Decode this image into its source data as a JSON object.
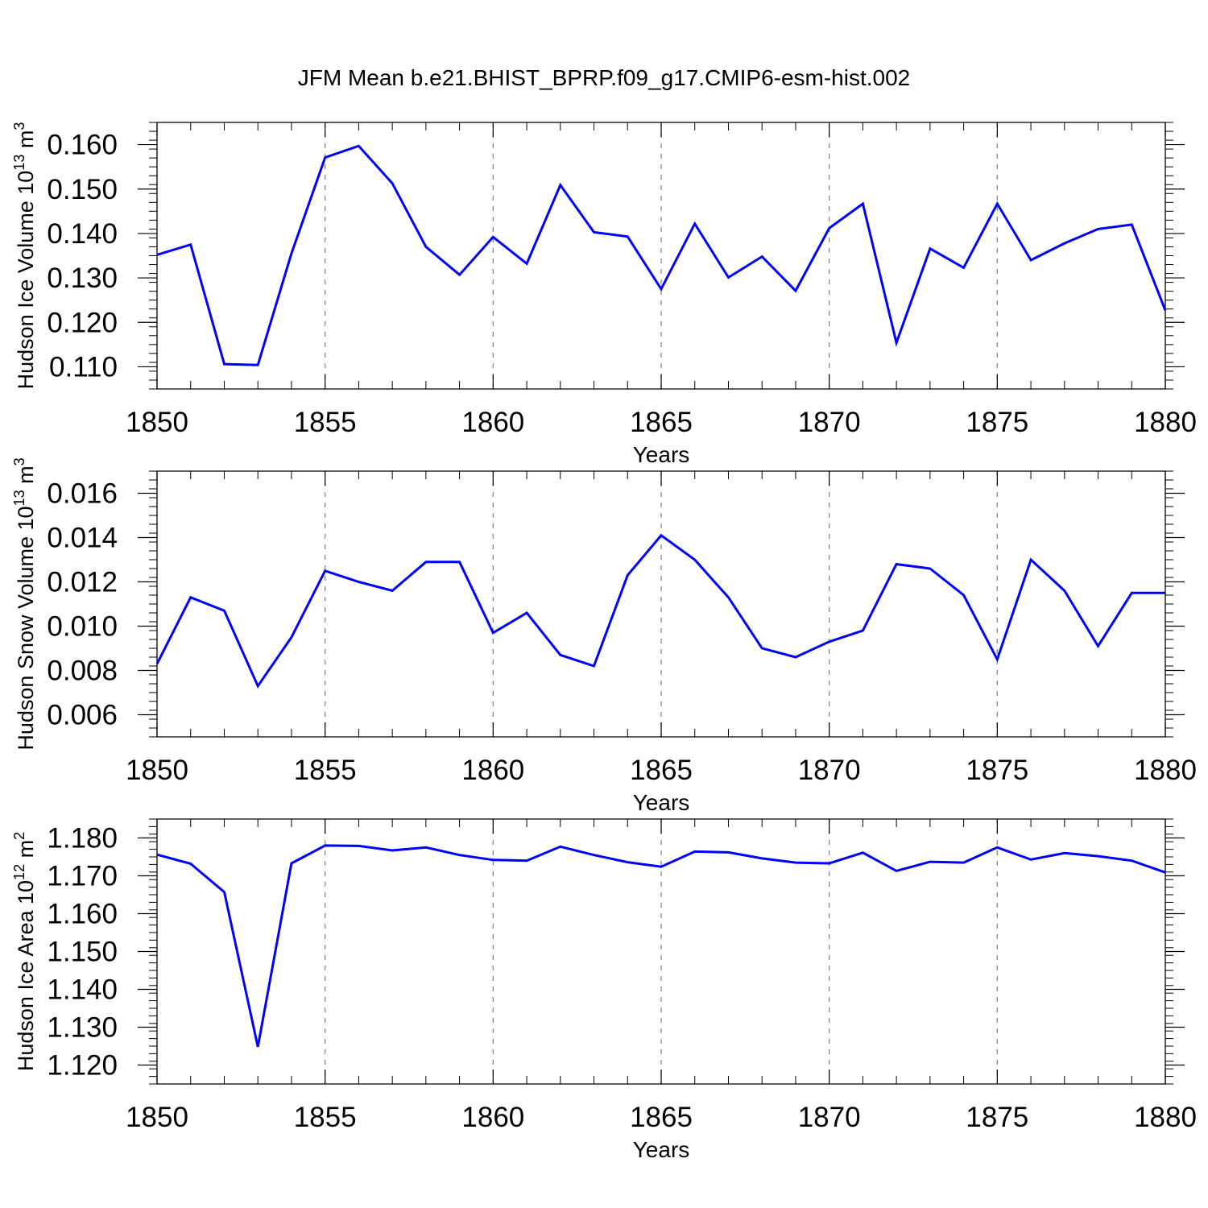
{
  "title": "JFM Mean b.e21.BHIST_BPRP.f09_g17.CMIP6-esm-hist.002",
  "line_color": "#0000ff",
  "chart_data": [
    {
      "type": "line",
      "ylabel": "Hudson Ice Volume 10",
      "ylabel_exp": "13",
      "ylabel_unit": " m",
      "ylabel_unit_exp": "3",
      "xlabel": "Years",
      "xlim": [
        1850,
        1880
      ],
      "ylim": [
        0.105,
        0.165
      ],
      "yticks": [
        0.11,
        0.12,
        0.13,
        0.14,
        0.15,
        0.16
      ],
      "ytick_labels": [
        "0.110",
        "0.120",
        "0.130",
        "0.140",
        "0.150",
        "0.160"
      ],
      "xticks": [
        1850,
        1855,
        1860,
        1865,
        1870,
        1875,
        1880
      ],
      "xtick_labels": [
        "1850",
        "1855",
        "1860",
        "1865",
        "1870",
        "1875",
        "1880"
      ],
      "x": [
        1850,
        1851,
        1852,
        1853,
        1854,
        1855,
        1856,
        1857,
        1858,
        1859,
        1860,
        1861,
        1862,
        1863,
        1864,
        1865,
        1866,
        1867,
        1868,
        1869,
        1870,
        1871,
        1872,
        1873,
        1874,
        1875,
        1876,
        1877,
        1878,
        1879,
        1880
      ],
      "values": [
        0.1352,
        0.1375,
        0.1106,
        0.1104,
        0.1355,
        0.1571,
        0.1597,
        0.1513,
        0.137,
        0.1307,
        0.1392,
        0.1332,
        0.1509,
        0.1403,
        0.1393,
        0.1275,
        0.1422,
        0.1301,
        0.1348,
        0.1271,
        0.1412,
        0.1467,
        0.1154,
        0.1366,
        0.1323,
        0.1467,
        0.134,
        0.1378,
        0.141,
        0.142,
        0.1227
      ]
    },
    {
      "type": "line",
      "ylabel": "Hudson Snow Volume 10",
      "ylabel_exp": "13",
      "ylabel_unit": " m",
      "ylabel_unit_exp": "3",
      "xlabel": "Years",
      "xlim": [
        1850,
        1880
      ],
      "ylim": [
        0.005,
        0.017
      ],
      "yticks": [
        0.006,
        0.008,
        0.01,
        0.012,
        0.014,
        0.016
      ],
      "ytick_labels": [
        "0.006",
        "0.008",
        "0.010",
        "0.012",
        "0.014",
        "0.016"
      ],
      "xticks": [
        1850,
        1855,
        1860,
        1865,
        1870,
        1875,
        1880
      ],
      "xtick_labels": [
        "1850",
        "1855",
        "1860",
        "1865",
        "1870",
        "1875",
        "1880"
      ],
      "x": [
        1850,
        1851,
        1852,
        1853,
        1854,
        1855,
        1856,
        1857,
        1858,
        1859,
        1860,
        1861,
        1862,
        1863,
        1864,
        1865,
        1866,
        1867,
        1868,
        1869,
        1870,
        1871,
        1872,
        1873,
        1874,
        1875,
        1876,
        1877,
        1878,
        1879,
        1880
      ],
      "values": [
        0.0083,
        0.0113,
        0.0107,
        0.0073,
        0.0095,
        0.0125,
        0.012,
        0.0116,
        0.0129,
        0.0129,
        0.0097,
        0.0106,
        0.0087,
        0.0082,
        0.0123,
        0.0141,
        0.013,
        0.0113,
        0.009,
        0.0086,
        0.0093,
        0.0098,
        0.0128,
        0.0126,
        0.0114,
        0.0085,
        0.013,
        0.0116,
        0.0091,
        0.0115,
        0.0115
      ]
    },
    {
      "type": "line",
      "ylabel": "Hudson Ice Area 10",
      "ylabel_exp": "12",
      "ylabel_unit": " m",
      "ylabel_unit_exp": "2",
      "xlabel": "Years",
      "xlim": [
        1850,
        1880
      ],
      "ylim": [
        1.115,
        1.185
      ],
      "yticks": [
        1.12,
        1.13,
        1.14,
        1.15,
        1.16,
        1.17,
        1.18
      ],
      "ytick_labels": [
        "1.120",
        "1.130",
        "1.140",
        "1.150",
        "1.160",
        "1.170",
        "1.180"
      ],
      "xticks": [
        1850,
        1855,
        1860,
        1865,
        1870,
        1875,
        1880
      ],
      "xtick_labels": [
        "1850",
        "1855",
        "1860",
        "1865",
        "1870",
        "1875",
        "1880"
      ],
      "x": [
        1850,
        1851,
        1852,
        1853,
        1854,
        1855,
        1856,
        1857,
        1858,
        1859,
        1860,
        1861,
        1862,
        1863,
        1864,
        1865,
        1866,
        1867,
        1868,
        1869,
        1870,
        1871,
        1872,
        1873,
        1874,
        1875,
        1876,
        1877,
        1878,
        1879,
        1880
      ],
      "values": [
        1.1756,
        1.1732,
        1.1657,
        1.1248,
        1.1733,
        1.178,
        1.1779,
        1.1767,
        1.1775,
        1.1755,
        1.1742,
        1.174,
        1.1777,
        1.1755,
        1.1736,
        1.1724,
        1.1764,
        1.1762,
        1.1746,
        1.1735,
        1.1733,
        1.1761,
        1.1713,
        1.1737,
        1.1735,
        1.1775,
        1.1743,
        1.176,
        1.1752,
        1.174,
        1.1709
      ]
    }
  ]
}
